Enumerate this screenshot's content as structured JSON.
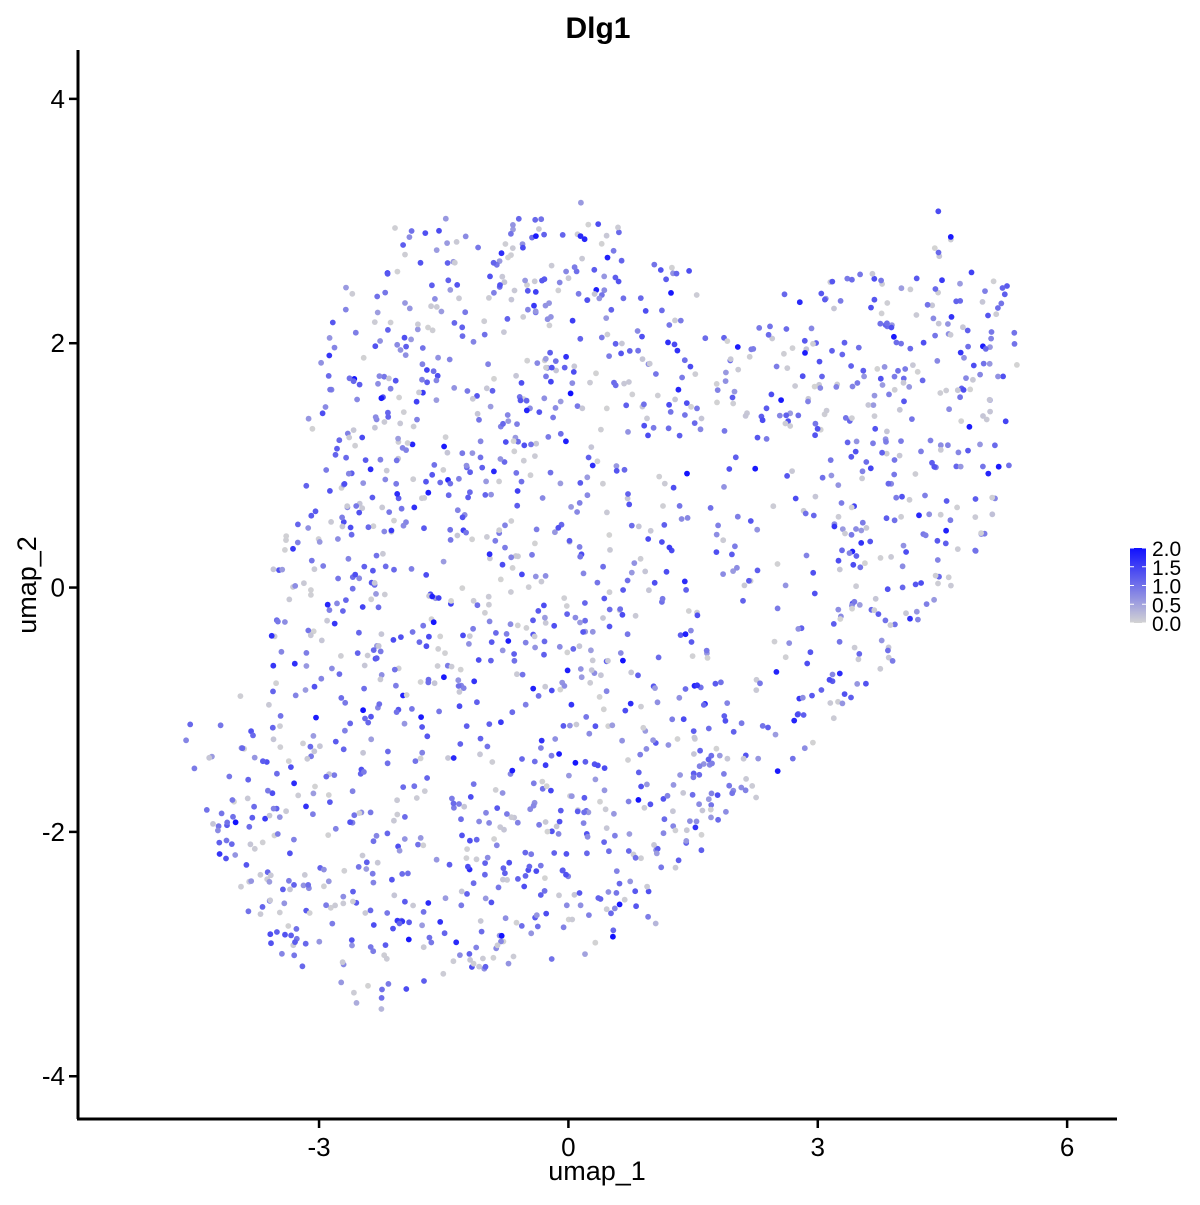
{
  "chart_data": {
    "type": "scatter",
    "title": "Dlg1",
    "xlabel": "umap_1",
    "ylabel": "umap_2",
    "xlim": [
      -5.9,
      6.6
    ],
    "ylim": [
      -4.35,
      4.4
    ],
    "xticks": [
      -3,
      0,
      3,
      6
    ],
    "yticks": [
      -4,
      -2,
      0,
      2,
      4
    ],
    "xtick_labels": [
      "-3",
      "0",
      "3",
      "6"
    ],
    "ytick_labels": [
      "-4",
      "-2",
      "0",
      "2",
      "4"
    ],
    "grid": false,
    "legend": {
      "placement": "right",
      "type": "colorbar",
      "title": "",
      "range": [
        0,
        2.0
      ],
      "ticks": [
        0,
        0.5,
        1.0,
        1.5,
        2.0
      ],
      "tick_labels": [
        "0.0",
        "0.5",
        "1.0",
        "1.5",
        "2.0"
      ]
    },
    "colors": {
      "low": "#d3d3d3",
      "high": "#1010ff",
      "axis": "#000000"
    },
    "point_count_estimate": 1700,
    "points_note_free": true,
    "points": [
      {
        "x": -4.6,
        "y": -1.25,
        "v": 0.8
      },
      {
        "x": -4.55,
        "y": -1.12,
        "v": 1.1
      },
      {
        "x": -4.5,
        "y": -1.48,
        "v": 0.9
      },
      {
        "x": -4.35,
        "y": -1.82,
        "v": 1.0
      },
      {
        "x": -3.55,
        "y": -0.64,
        "v": 1.6
      },
      {
        "x": -2.25,
        "y": 1.55,
        "v": 1.9
      },
      {
        "x": -1.7,
        "y": 1.68,
        "v": 1.2
      },
      {
        "x": -0.5,
        "y": 1.45,
        "v": 1.8
      },
      {
        "x": -0.2,
        "y": 1.8,
        "v": 1.3
      },
      {
        "x": 0.15,
        "y": 3.15,
        "v": 0.6
      },
      {
        "x": 4.45,
        "y": 3.08,
        "v": 1.4
      },
      {
        "x": 4.6,
        "y": 2.87,
        "v": 1.9
      },
      {
        "x": 4.85,
        "y": 2.58,
        "v": 1.5
      },
      {
        "x": 5.25,
        "y": 2.4,
        "v": 1.2
      },
      {
        "x": 5.3,
        "y": 1.0,
        "v": 1.0
      },
      {
        "x": 5.1,
        "y": 0.6,
        "v": 0.2
      },
      {
        "x": 2.6,
        "y": 2.4,
        "v": 1.1
      },
      {
        "x": 2.2,
        "y": 1.95,
        "v": 0.9
      },
      {
        "x": 1.4,
        "y": 0.05,
        "v": 1.7
      },
      {
        "x": 1.55,
        "y": -0.8,
        "v": 1.6
      },
      {
        "x": 0.75,
        "y": -0.95,
        "v": 1.7
      },
      {
        "x": 1.6,
        "y": -2.15,
        "v": 1.2
      },
      {
        "x": 1.05,
        "y": -2.75,
        "v": 0.3
      },
      {
        "x": 0.2,
        "y": -3.0,
        "v": 0.5
      },
      {
        "x": -2.25,
        "y": -3.45,
        "v": 0.3
      },
      {
        "x": -2.55,
        "y": -3.4,
        "v": 0.4
      },
      {
        "x": -3.2,
        "y": -3.1,
        "v": 1.1
      },
      {
        "x": -3.85,
        "y": -2.65,
        "v": 1.0
      },
      {
        "x": -4.05,
        "y": -2.1,
        "v": 1.1
      },
      {
        "x": 2.7,
        "y": -1.4,
        "v": 1.0
      },
      {
        "x": 3.4,
        "y": -0.9,
        "v": 1.2
      },
      {
        "x": 3.9,
        "y": -0.6,
        "v": 0.9
      },
      {
        "x": 4.4,
        "y": -0.1,
        "v": 0.6
      },
      {
        "x": 4.9,
        "y": 0.3,
        "v": 1.0
      },
      {
        "x": 3.2,
        "y": 0.5,
        "v": 1.6
      },
      {
        "x": 3.85,
        "y": 0.85,
        "v": 1.1
      }
    ]
  }
}
